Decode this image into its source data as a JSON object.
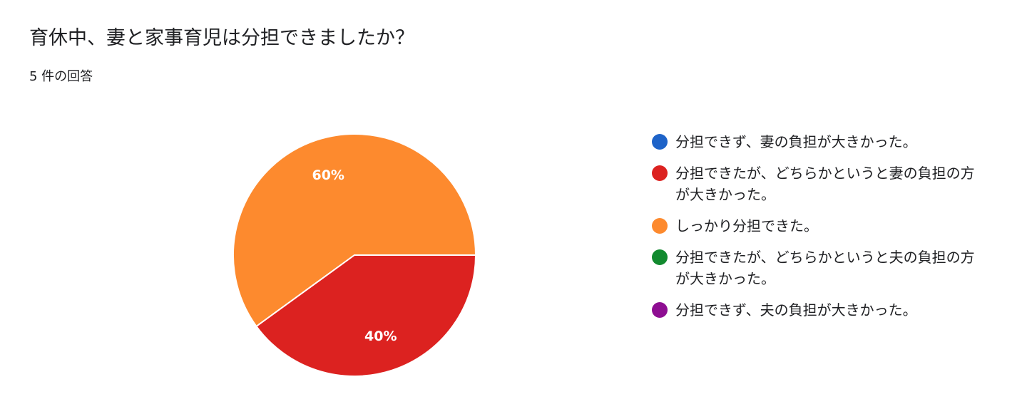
{
  "header": {
    "title": "育休中、妻と家事育児は分担できましたか？",
    "response_count": "5 件の回答"
  },
  "chart_data": {
    "type": "pie",
    "legend_position": "right",
    "series": [
      {
        "name": "分担できず、妻の負担が大きかった。",
        "value": 0,
        "color": "#1e63c8",
        "pct_label": ""
      },
      {
        "name": "分担できたが、どちらかというと妻の負担の方が大きかった。",
        "value": 40,
        "color": "#dc2220",
        "pct_label": "40%"
      },
      {
        "name": "しっかり分担できた。",
        "value": 60,
        "color": "#fd8a2e",
        "pct_label": "60%"
      },
      {
        "name": "分担できたが、どちらかというと夫の負担の方が大きかった。",
        "value": 0,
        "color": "#128a2f",
        "pct_label": ""
      },
      {
        "name": "分担できず、夫の負担が大きかった。",
        "value": 0,
        "color": "#8e0e92",
        "pct_label": ""
      }
    ]
  }
}
